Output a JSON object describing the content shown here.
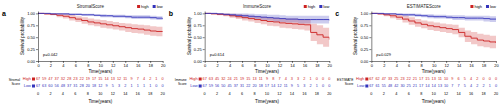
{
  "chart_data": [
    {
      "type": "line",
      "title": "StromalScore",
      "annotations": [
        "a",
        "p=0.042"
      ],
      "x_label": "Time(years)",
      "y_label": "Survival probability",
      "x": [
        0,
        1,
        2,
        3,
        4,
        5,
        6,
        7,
        8,
        9,
        10,
        11,
        12,
        13,
        14,
        15,
        16,
        17,
        18,
        19,
        20
      ],
      "xlim": [
        0,
        20
      ],
      "xticks": [
        0,
        2,
        4,
        6,
        8,
        10,
        12,
        14,
        16,
        18,
        20
      ],
      "ylim": [
        0,
        1.05
      ],
      "yticks": [
        {
          "value": 0,
          "label": "0.00"
        },
        0.25,
        {
          "value": 0.5,
          "label": "0.50"
        },
        0.75,
        {
          "value": 1,
          "label": "1.00"
        }
      ],
      "grid": false,
      "legend": "upper right",
      "line_style": "step",
      "series": [
        {
          "name": "high",
          "color": "#cc2222",
          "values": [
            1.0,
            0.99,
            0.98,
            0.96,
            0.94,
            0.91,
            0.88,
            0.85,
            0.82,
            0.8,
            0.78,
            0.76,
            0.74,
            0.72,
            0.7,
            0.68,
            0.67,
            0.65,
            0.63,
            0.62,
            0.61
          ],
          "ci_upper": [
            1.0,
            1.0,
            1.0,
            1.0,
            0.99,
            0.97,
            0.94,
            0.92,
            0.89,
            0.87,
            0.86,
            0.84,
            0.82,
            0.8,
            0.79,
            0.77,
            0.76,
            0.75,
            0.73,
            0.72,
            0.71
          ],
          "ci_lower": [
            1.0,
            0.97,
            0.96,
            0.92,
            0.89,
            0.85,
            0.82,
            0.78,
            0.75,
            0.73,
            0.7,
            0.68,
            0.66,
            0.64,
            0.61,
            0.59,
            0.58,
            0.55,
            0.53,
            0.52,
            0.51
          ]
        },
        {
          "name": "low",
          "color": "#3333bb",
          "values": [
            1.0,
            1.0,
            0.99,
            0.99,
            0.99,
            0.98,
            0.98,
            0.97,
            0.97,
            0.96,
            0.95,
            0.95,
            0.94,
            0.94,
            0.93,
            0.92,
            0.92,
            0.92,
            0.91,
            0.9,
            0.88
          ],
          "ci_upper": [
            1.0,
            1.0,
            1.0,
            1.0,
            1.0,
            1.0,
            1.0,
            0.99,
            0.99,
            0.98,
            0.98,
            0.97,
            0.97,
            0.97,
            0.96,
            0.96,
            0.96,
            0.96,
            0.95,
            0.94,
            0.93
          ],
          "ci_lower": [
            1.0,
            1.0,
            0.98,
            0.98,
            0.97,
            0.96,
            0.96,
            0.95,
            0.95,
            0.94,
            0.92,
            0.92,
            0.91,
            0.91,
            0.9,
            0.88,
            0.88,
            0.88,
            0.87,
            0.86,
            0.83
          ]
        }
      ],
      "risk_table": {
        "title": "Stromal\nScore",
        "x_label": "Time(years)",
        "x": [
          0,
          1,
          2,
          3,
          4,
          5,
          6,
          7,
          8,
          9,
          10,
          11,
          12,
          13,
          14,
          15,
          16,
          17,
          18,
          19,
          20
        ],
        "ticks": [
          0,
          2,
          4,
          6,
          8,
          10,
          12,
          14,
          16,
          18,
          20
        ],
        "rows": [
          {
            "label": "High",
            "color": "#cc2222",
            "values": [
              67,
              59,
              47,
              37,
              32,
              28,
              23,
              22,
              19,
              17,
              15,
              14,
              13,
              12,
              11,
              9,
              7,
              4,
              2,
              1,
              0
            ]
          },
          {
            "label": "Low",
            "color": "#3333bb",
            "values": [
              67,
              63,
              60,
              56,
              48,
              37,
              31,
              28,
              20,
              18,
              12,
              9,
              5,
              3,
              2,
              1,
              1,
              1,
              1,
              0,
              0
            ]
          }
        ]
      }
    },
    {
      "type": "line",
      "title": "ImmuneScore",
      "annotations": [
        "b",
        "p=0.614"
      ],
      "x_label": "Time(years)",
      "y_label": "Survival probability",
      "x": [
        0,
        1,
        2,
        3,
        4,
        5,
        6,
        7,
        8,
        9,
        10,
        11,
        12,
        13,
        14,
        15,
        16,
        17,
        18,
        19,
        20
      ],
      "xlim": [
        0,
        20
      ],
      "xticks": [
        0,
        2,
        4,
        6,
        8,
        10,
        12,
        14,
        16,
        18,
        20
      ],
      "ylim": [
        0,
        1.05
      ],
      "yticks": [
        {
          "value": 0,
          "label": "0.00"
        },
        0.25,
        {
          "value": 0.5,
          "label": "0.50"
        },
        0.75,
        {
          "value": 1,
          "label": "1.00"
        }
      ],
      "grid": false,
      "legend": "upper right",
      "line_style": "step",
      "series": [
        {
          "name": "high",
          "color": "#cc2222",
          "values": [
            1.0,
            0.99,
            0.98,
            0.97,
            0.95,
            0.93,
            0.91,
            0.89,
            0.87,
            0.85,
            0.83,
            0.82,
            0.8,
            0.79,
            0.78,
            0.77,
            0.76,
            0.6,
            0.55,
            0.5,
            0.45
          ],
          "ci_upper": [
            1.0,
            1.0,
            1.0,
            1.0,
            0.99,
            0.98,
            0.97,
            0.95,
            0.94,
            0.93,
            0.92,
            0.91,
            0.9,
            0.89,
            0.89,
            0.88,
            0.88,
            0.78,
            0.75,
            0.7,
            0.68
          ],
          "ci_lower": [
            1.0,
            0.98,
            0.96,
            0.94,
            0.91,
            0.88,
            0.85,
            0.83,
            0.8,
            0.77,
            0.74,
            0.73,
            0.7,
            0.69,
            0.67,
            0.66,
            0.64,
            0.42,
            0.35,
            0.3,
            0.22
          ]
        },
        {
          "name": "low",
          "color": "#3333bb",
          "values": [
            1.0,
            1.0,
            0.99,
            0.98,
            0.97,
            0.96,
            0.95,
            0.94,
            0.93,
            0.92,
            0.91,
            0.9,
            0.89,
            0.88,
            0.88,
            0.87,
            0.87,
            0.87,
            0.87,
            0.87,
            0.85
          ],
          "ci_upper": [
            1.0,
            1.0,
            1.0,
            1.0,
            1.0,
            1.0,
            1.0,
            0.99,
            0.98,
            0.98,
            0.97,
            0.97,
            0.96,
            0.95,
            0.95,
            0.95,
            0.95,
            0.95,
            0.95,
            0.95,
            0.95
          ],
          "ci_lower": [
            1.0,
            1.0,
            0.98,
            0.96,
            0.94,
            0.92,
            0.9,
            0.89,
            0.88,
            0.86,
            0.85,
            0.83,
            0.82,
            0.81,
            0.81,
            0.79,
            0.79,
            0.79,
            0.79,
            0.79,
            0.75
          ]
        }
      ],
      "risk_table": {
        "title": "Immune\nScore",
        "x_label": "Time(years)",
        "x": [
          0,
          1,
          2,
          3,
          4,
          5,
          6,
          7,
          8,
          9,
          10,
          11,
          12,
          13,
          14,
          15,
          16,
          17,
          18,
          19,
          20
        ],
        "ticks": [
          0,
          2,
          4,
          6,
          8,
          10,
          12,
          14,
          16,
          18,
          20
        ],
        "rows": [
          {
            "label": "High",
            "color": "#cc2222",
            "values": [
              67,
              63,
              45,
              32,
              24,
              21,
              19,
              15,
              13,
              11,
              9,
              8,
              7,
              4,
              3,
              3,
              2,
              1,
              0,
              0,
              0
            ]
          },
          {
            "label": "Low",
            "color": "#3333bb",
            "values": [
              67,
              59,
              56,
              50,
              45,
              37,
              31,
              22,
              20,
              18,
              17,
              14,
              12,
              11,
              9,
              5,
              3,
              2,
              1,
              0,
              0
            ]
          }
        ]
      }
    },
    {
      "type": "line",
      "title": "ESTIMATEScore",
      "annotations": [
        "c",
        "p=0.029"
      ],
      "x_label": "Time(years)",
      "y_label": "Survival probability",
      "x": [
        0,
        1,
        2,
        3,
        4,
        5,
        6,
        7,
        8,
        9,
        10,
        11,
        12,
        13,
        14,
        15,
        16,
        17,
        18,
        19,
        20
      ],
      "xlim": [
        0,
        20
      ],
      "xticks": [
        0,
        2,
        4,
        6,
        8,
        10,
        12,
        14,
        16,
        18,
        20
      ],
      "ylim": [
        0,
        1.05
      ],
      "yticks": [
        {
          "value": 0,
          "label": "0.00"
        },
        0.25,
        {
          "value": 0.5,
          "label": "0.50"
        },
        0.75,
        {
          "value": 1,
          "label": "1.00"
        }
      ],
      "grid": false,
      "legend": "upper right",
      "line_style": "step",
      "series": [
        {
          "name": "high",
          "color": "#cc2222",
          "values": [
            1.0,
            0.99,
            0.97,
            0.95,
            0.92,
            0.88,
            0.84,
            0.8,
            0.77,
            0.74,
            0.72,
            0.7,
            0.68,
            0.66,
            0.6,
            0.52,
            0.48,
            0.44,
            0.42,
            0.4,
            0.38
          ],
          "ci_upper": [
            1.0,
            1.0,
            1.0,
            1.0,
            0.98,
            0.95,
            0.92,
            0.88,
            0.85,
            0.83,
            0.81,
            0.79,
            0.77,
            0.76,
            0.7,
            0.64,
            0.61,
            0.57,
            0.55,
            0.53,
            0.51
          ],
          "ci_lower": [
            1.0,
            0.97,
            0.94,
            0.9,
            0.86,
            0.81,
            0.76,
            0.72,
            0.69,
            0.65,
            0.63,
            0.61,
            0.59,
            0.56,
            0.5,
            0.4,
            0.35,
            0.31,
            0.29,
            0.27,
            0.25
          ]
        },
        {
          "name": "low",
          "color": "#3333bb",
          "values": [
            1.0,
            1.0,
            0.99,
            0.99,
            0.98,
            0.97,
            0.97,
            0.96,
            0.95,
            0.94,
            0.93,
            0.93,
            0.92,
            0.91,
            0.91,
            0.9,
            0.9,
            0.9,
            0.89,
            0.88,
            0.88
          ],
          "ci_upper": [
            1.0,
            1.0,
            1.0,
            1.0,
            1.0,
            1.0,
            1.0,
            0.99,
            0.98,
            0.98,
            0.97,
            0.97,
            0.96,
            0.96,
            0.96,
            0.95,
            0.95,
            0.95,
            0.95,
            0.94,
            0.94
          ],
          "ci_lower": [
            1.0,
            1.0,
            0.98,
            0.98,
            0.96,
            0.94,
            0.94,
            0.93,
            0.92,
            0.9,
            0.89,
            0.89,
            0.88,
            0.86,
            0.86,
            0.85,
            0.85,
            0.85,
            0.83,
            0.82,
            0.82
          ]
        }
      ],
      "risk_table": {
        "title": "ESTIMATE\nScore",
        "x_label": "Time(years)",
        "x": [
          0,
          1,
          2,
          3,
          4,
          5,
          6,
          7,
          8,
          9,
          10,
          11,
          12,
          13,
          14,
          15,
          16,
          17,
          18,
          19,
          20
        ],
        "ticks": [
          0,
          2,
          4,
          6,
          8,
          10,
          12,
          14,
          16,
          18,
          20
        ],
        "rows": [
          {
            "label": "High",
            "color": "#cc2222",
            "values": [
              67,
              62,
              47,
              33,
              25,
              23,
              22,
              21,
              17,
              15,
              13,
              11,
              10,
              9,
              6,
              5,
              4,
              2,
              0,
              0,
              0
            ]
          },
          {
            "label": "Low",
            "color": "#3333bb",
            "values": [
              67,
              61,
              55,
              48,
              42,
              30,
              25,
              21,
              17,
              14,
              14,
              13,
              10,
              7,
              7,
              5,
              4,
              2,
              2,
              1,
              0
            ]
          }
        ]
      }
    }
  ]
}
